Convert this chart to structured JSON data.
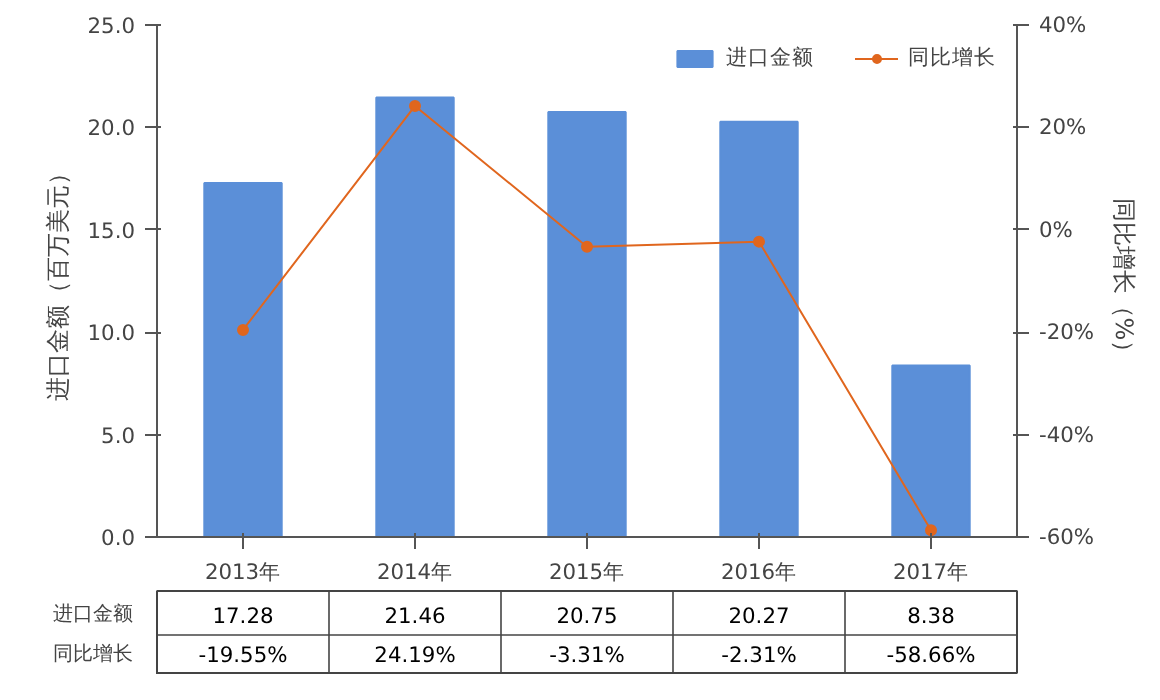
{
  "chart_data": {
    "type": "bar",
    "categories": [
      "2013年",
      "2014年",
      "2015年",
      "2016年",
      "2017年"
    ],
    "ylabel": "进口金额（百万美元）",
    "y2label": "同比增长（%）",
    "ylim": [
      0,
      25
    ],
    "yticks": [
      {
        "value": 0,
        "label": "0.0"
      },
      {
        "value": 5,
        "label": "5.0"
      },
      {
        "value": 10,
        "label": "10.0"
      },
      {
        "value": 15,
        "label": "15.0"
      },
      {
        "value": 20,
        "label": "20.0"
      },
      {
        "value": 25,
        "label": "25.0"
      }
    ],
    "y2lim": [
      -60,
      40
    ],
    "y2ticks": [
      {
        "value": -60,
        "label": "-60%"
      },
      {
        "value": -40,
        "label": "-40%"
      },
      {
        "value": -20,
        "label": "-20%"
      },
      {
        "value": 0,
        "label": "0%"
      },
      {
        "value": 20,
        "label": "20%"
      },
      {
        "value": 40,
        "label": "40%"
      }
    ],
    "legend": "top right",
    "series": [
      {
        "name": "进口金额",
        "color": "#5b8fd8",
        "values": [
          17.28,
          21.46,
          20.75,
          20.27,
          8.38
        ],
        "value_labels": [
          "17.28",
          "21.46",
          "20.75",
          "20.27",
          "8.38"
        ]
      },
      {
        "name": "同比增长",
        "type": "line",
        "axis": "y2",
        "color": "#e0661e",
        "marker": "circle",
        "values": [
          -19.55,
          24.19,
          -3.31,
          -2.31,
          -58.66
        ],
        "value_labels": [
          "-19.55%",
          "24.19%",
          "-3.31%",
          "-2.31%",
          "-58.66%"
        ]
      }
    ]
  }
}
